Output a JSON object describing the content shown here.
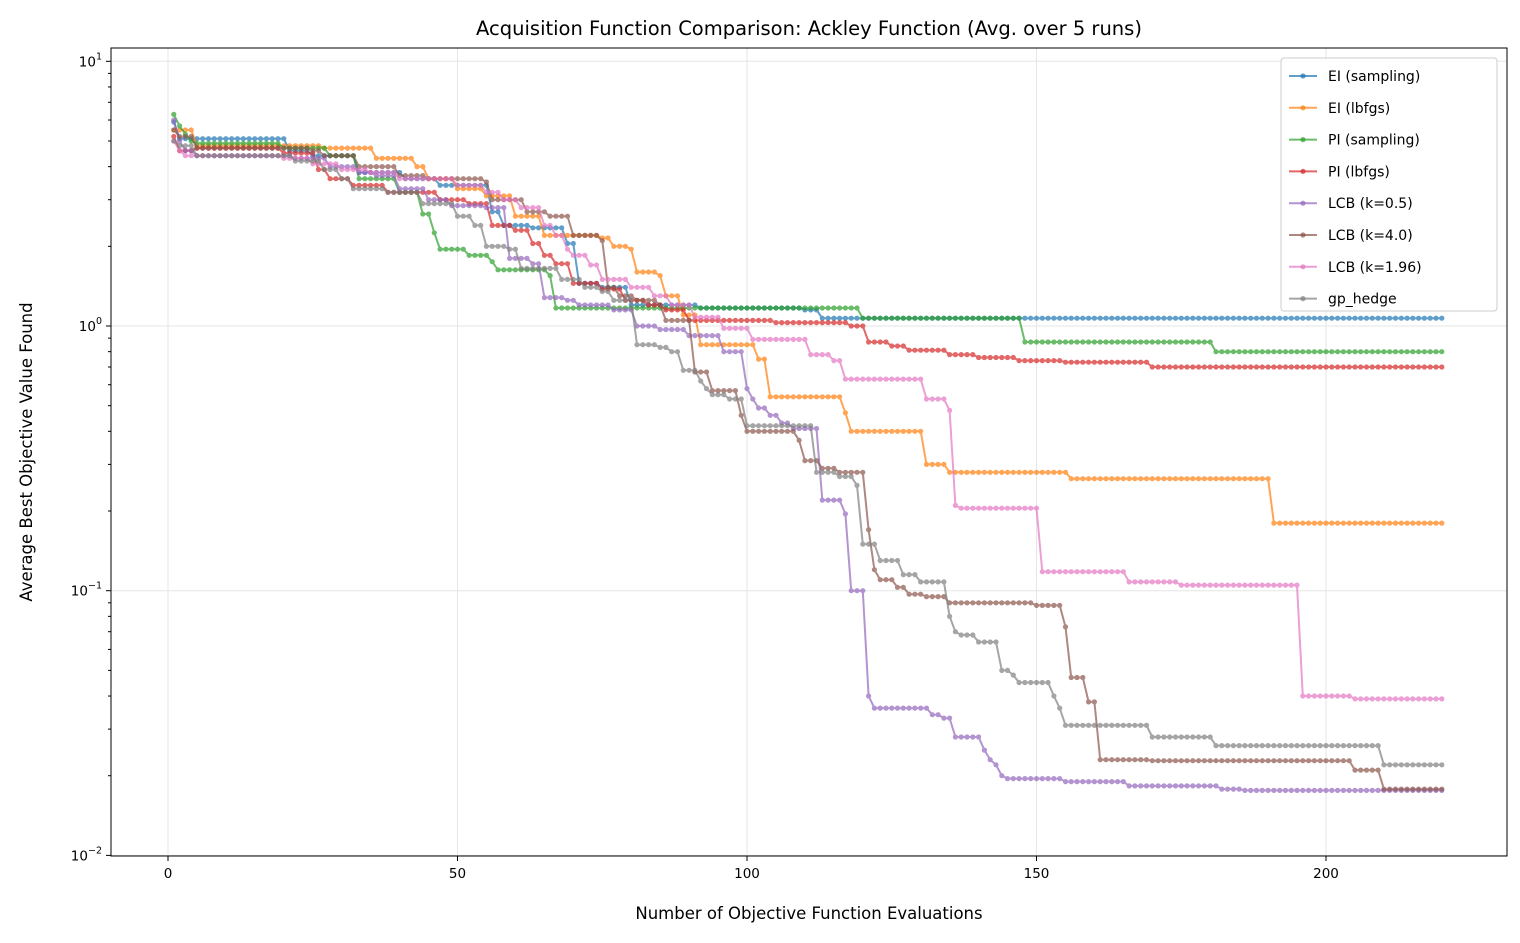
{
  "chart_data": {
    "type": "line",
    "title": "Acquisition Function Comparison: Ackley Function (Avg. over 5 runs)",
    "xlabel": "Number of Objective Function Evaluations",
    "ylabel": "Average Best Objective Value Found",
    "xlim": [
      -10,
      230
    ],
    "ylim": [
      0.01,
      11.5
    ],
    "yscale": "log",
    "grid": true,
    "legend_position": "top-right",
    "x_ticks": [
      0,
      50,
      100,
      150,
      200
    ],
    "x_tick_labels": [
      "0",
      "50",
      "100",
      "150",
      "200"
    ],
    "y_ticks": [
      10,
      1,
      0.1,
      0.01
    ],
    "y_tick_labels": [
      {
        "base": "10",
        "exp": "1"
      },
      {
        "base": "10",
        "exp": "0"
      },
      {
        "base": "10",
        "exp": "−1"
      },
      {
        "base": "10",
        "exp": "−2"
      }
    ],
    "x_range": [
      1,
      220
    ],
    "series_encoding": "step changes [x, y]: value y holds from evaluation x until the next step",
    "series": [
      {
        "name": "EI (sampling)",
        "color": "#1f77b4",
        "steps": [
          [
            1,
            5.9
          ],
          [
            2,
            5.1
          ],
          [
            21,
            4.6
          ],
          [
            25,
            4.4
          ],
          [
            33,
            3.8
          ],
          [
            41,
            3.6
          ],
          [
            47,
            3.4
          ],
          [
            56,
            2.7
          ],
          [
            58,
            2.4
          ],
          [
            63,
            2.35
          ],
          [
            69,
            2.05
          ],
          [
            71,
            1.45
          ],
          [
            75,
            1.4
          ],
          [
            80,
            1.2
          ],
          [
            92,
            1.17
          ],
          [
            110,
            1.15
          ],
          [
            113,
            1.07
          ],
          [
            220,
            1.07
          ]
        ]
      },
      {
        "name": "EI (lbfgs)",
        "color": "#ff7f0e",
        "steps": [
          [
            1,
            5.5
          ],
          [
            5,
            4.8
          ],
          [
            27,
            4.7
          ],
          [
            36,
            4.3
          ],
          [
            43,
            4.0
          ],
          [
            45,
            3.6
          ],
          [
            50,
            3.3
          ],
          [
            55,
            3.1
          ],
          [
            60,
            2.6
          ],
          [
            65,
            2.2
          ],
          [
            75,
            2.15
          ],
          [
            77,
            2.0
          ],
          [
            80,
            1.95
          ],
          [
            81,
            1.6
          ],
          [
            85,
            1.55
          ],
          [
            86,
            1.3
          ],
          [
            89,
            1.1
          ],
          [
            92,
            0.85
          ],
          [
            102,
            0.75
          ],
          [
            104,
            0.54
          ],
          [
            117,
            0.47
          ],
          [
            118,
            0.4
          ],
          [
            131,
            0.3
          ],
          [
            135,
            0.28
          ],
          [
            156,
            0.265
          ],
          [
            191,
            0.18
          ],
          [
            220,
            0.18
          ]
        ]
      },
      {
        "name": "PI (sampling)",
        "color": "#2ca02c",
        "steps": [
          [
            1,
            6.3
          ],
          [
            2,
            5.7
          ],
          [
            3,
            5.3
          ],
          [
            4,
            5.0
          ],
          [
            5,
            4.9
          ],
          [
            20,
            4.7
          ],
          [
            28,
            4.4
          ],
          [
            33,
            3.6
          ],
          [
            40,
            3.2
          ],
          [
            44,
            2.65
          ],
          [
            46,
            2.25
          ],
          [
            47,
            1.95
          ],
          [
            52,
            1.85
          ],
          [
            56,
            1.75
          ],
          [
            57,
            1.63
          ],
          [
            66,
            1.55
          ],
          [
            67,
            1.17
          ],
          [
            120,
            1.07
          ],
          [
            148,
            0.87
          ],
          [
            181,
            0.8
          ],
          [
            220,
            0.8
          ]
        ]
      },
      {
        "name": "PI (lbfgs)",
        "color": "#d62728",
        "steps": [
          [
            1,
            5.2
          ],
          [
            2,
            4.6
          ],
          [
            5,
            4.7
          ],
          [
            20,
            4.5
          ],
          [
            26,
            3.9
          ],
          [
            28,
            3.6
          ],
          [
            32,
            3.4
          ],
          [
            38,
            3.2
          ],
          [
            47,
            3.0
          ],
          [
            52,
            2.9
          ],
          [
            56,
            2.4
          ],
          [
            60,
            2.3
          ],
          [
            63,
            2.05
          ],
          [
            65,
            1.85
          ],
          [
            67,
            1.72
          ],
          [
            70,
            1.45
          ],
          [
            75,
            1.38
          ],
          [
            79,
            1.25
          ],
          [
            83,
            1.2
          ],
          [
            86,
            1.15
          ],
          [
            90,
            1.05
          ],
          [
            105,
            1.03
          ],
          [
            118,
            1.0
          ],
          [
            121,
            0.87
          ],
          [
            125,
            0.84
          ],
          [
            128,
            0.81
          ],
          [
            135,
            0.78
          ],
          [
            140,
            0.76
          ],
          [
            147,
            0.74
          ],
          [
            155,
            0.73
          ],
          [
            170,
            0.7
          ],
          [
            220,
            0.7
          ]
        ]
      },
      {
        "name": "LCB (k=0.5)",
        "color": "#9467bd",
        "steps": [
          [
            1,
            6.0
          ],
          [
            2,
            5.0
          ],
          [
            3,
            4.6
          ],
          [
            5,
            4.4
          ],
          [
            22,
            4.3
          ],
          [
            28,
            4.0
          ],
          [
            33,
            3.8
          ],
          [
            36,
            3.7
          ],
          [
            40,
            3.3
          ],
          [
            45,
            3.0
          ],
          [
            49,
            2.85
          ],
          [
            55,
            2.8
          ],
          [
            59,
            1.8
          ],
          [
            63,
            1.72
          ],
          [
            65,
            1.28
          ],
          [
            69,
            1.25
          ],
          [
            71,
            1.2
          ],
          [
            77,
            1.15
          ],
          [
            81,
            1.0
          ],
          [
            85,
            0.97
          ],
          [
            90,
            0.92
          ],
          [
            96,
            0.8
          ],
          [
            100,
            0.58
          ],
          [
            101,
            0.53
          ],
          [
            102,
            0.49
          ],
          [
            104,
            0.46
          ],
          [
            106,
            0.43
          ],
          [
            108,
            0.41
          ],
          [
            113,
            0.22
          ],
          [
            117,
            0.195
          ],
          [
            118,
            0.1
          ],
          [
            121,
            0.04
          ],
          [
            122,
            0.036
          ],
          [
            132,
            0.034
          ],
          [
            134,
            0.033
          ],
          [
            136,
            0.028
          ],
          [
            141,
            0.025
          ],
          [
            142,
            0.023
          ],
          [
            143,
            0.022
          ],
          [
            144,
            0.02
          ],
          [
            145,
            0.0195
          ],
          [
            155,
            0.019
          ],
          [
            166,
            0.0183
          ],
          [
            182,
            0.0178
          ],
          [
            186,
            0.0176
          ],
          [
            220,
            0.0176
          ]
        ]
      },
      {
        "name": "LCB (k=4.0)",
        "color": "#8c564b",
        "steps": [
          [
            1,
            5.5
          ],
          [
            2,
            5.2
          ],
          [
            5,
            4.7
          ],
          [
            25,
            4.6
          ],
          [
            27,
            4.4
          ],
          [
            33,
            4.0
          ],
          [
            40,
            3.7
          ],
          [
            45,
            3.6
          ],
          [
            55,
            3.5
          ],
          [
            56,
            3.0
          ],
          [
            62,
            2.7
          ],
          [
            66,
            2.6
          ],
          [
            70,
            2.2
          ],
          [
            75,
            2.1
          ],
          [
            76,
            1.4
          ],
          [
            78,
            1.3
          ],
          [
            81,
            1.25
          ],
          [
            85,
            1.2
          ],
          [
            86,
            1.05
          ],
          [
            91,
            0.67
          ],
          [
            94,
            0.57
          ],
          [
            99,
            0.46
          ],
          [
            100,
            0.4
          ],
          [
            109,
            0.37
          ],
          [
            110,
            0.31
          ],
          [
            113,
            0.29
          ],
          [
            116,
            0.28
          ],
          [
            121,
            0.17
          ],
          [
            122,
            0.12
          ],
          [
            123,
            0.11
          ],
          [
            126,
            0.103
          ],
          [
            128,
            0.097
          ],
          [
            131,
            0.095
          ],
          [
            135,
            0.09
          ],
          [
            150,
            0.088
          ],
          [
            155,
            0.073
          ],
          [
            156,
            0.047
          ],
          [
            159,
            0.038
          ],
          [
            161,
            0.023
          ],
          [
            170,
            0.0228
          ],
          [
            205,
            0.021
          ],
          [
            210,
            0.0178
          ],
          [
            220,
            0.0178
          ]
        ]
      },
      {
        "name": "LCB (k=1.96)",
        "color": "#e377c2",
        "steps": [
          [
            1,
            5.0
          ],
          [
            2,
            4.6
          ],
          [
            3,
            4.4
          ],
          [
            20,
            4.3
          ],
          [
            25,
            4.1
          ],
          [
            30,
            3.9
          ],
          [
            35,
            3.8
          ],
          [
            40,
            3.6
          ],
          [
            50,
            3.4
          ],
          [
            55,
            3.2
          ],
          [
            58,
            3.0
          ],
          [
            61,
            2.8
          ],
          [
            65,
            2.4
          ],
          [
            67,
            2.2
          ],
          [
            69,
            1.95
          ],
          [
            70,
            1.85
          ],
          [
            73,
            1.7
          ],
          [
            75,
            1.5
          ],
          [
            80,
            1.4
          ],
          [
            84,
            1.3
          ],
          [
            87,
            1.2
          ],
          [
            91,
            1.08
          ],
          [
            96,
            0.98
          ],
          [
            101,
            0.89
          ],
          [
            111,
            0.78
          ],
          [
            115,
            0.74
          ],
          [
            117,
            0.63
          ],
          [
            131,
            0.53
          ],
          [
            135,
            0.48
          ],
          [
            136,
            0.21
          ],
          [
            137,
            0.205
          ],
          [
            151,
            0.118
          ],
          [
            166,
            0.108
          ],
          [
            175,
            0.105
          ],
          [
            196,
            0.04
          ],
          [
            205,
            0.039
          ],
          [
            220,
            0.039
          ]
        ]
      },
      {
        "name": "gp_hedge",
        "color": "#7f7f7f",
        "steps": [
          [
            1,
            5.0
          ],
          [
            2,
            4.8
          ],
          [
            5,
            4.4
          ],
          [
            22,
            4.2
          ],
          [
            27,
            3.9
          ],
          [
            30,
            3.6
          ],
          [
            32,
            3.3
          ],
          [
            38,
            3.2
          ],
          [
            44,
            2.9
          ],
          [
            50,
            2.6
          ],
          [
            53,
            2.4
          ],
          [
            55,
            2.0
          ],
          [
            59,
            1.95
          ],
          [
            61,
            1.65
          ],
          [
            68,
            1.5
          ],
          [
            72,
            1.4
          ],
          [
            75,
            1.35
          ],
          [
            77,
            1.25
          ],
          [
            81,
            0.85
          ],
          [
            85,
            0.83
          ],
          [
            87,
            0.8
          ],
          [
            89,
            0.68
          ],
          [
            92,
            0.62
          ],
          [
            93,
            0.58
          ],
          [
            94,
            0.55
          ],
          [
            97,
            0.53
          ],
          [
            100,
            0.42
          ],
          [
            112,
            0.28
          ],
          [
            116,
            0.27
          ],
          [
            119,
            0.25
          ],
          [
            120,
            0.15
          ],
          [
            123,
            0.13
          ],
          [
            127,
            0.115
          ],
          [
            130,
            0.108
          ],
          [
            135,
            0.08
          ],
          [
            136,
            0.07
          ],
          [
            137,
            0.068
          ],
          [
            140,
            0.064
          ],
          [
            144,
            0.05
          ],
          [
            146,
            0.048
          ],
          [
            147,
            0.045
          ],
          [
            153,
            0.04
          ],
          [
            154,
            0.036
          ],
          [
            155,
            0.031
          ],
          [
            170,
            0.028
          ],
          [
            181,
            0.026
          ],
          [
            210,
            0.022
          ],
          [
            220,
            0.022
          ]
        ]
      }
    ]
  }
}
